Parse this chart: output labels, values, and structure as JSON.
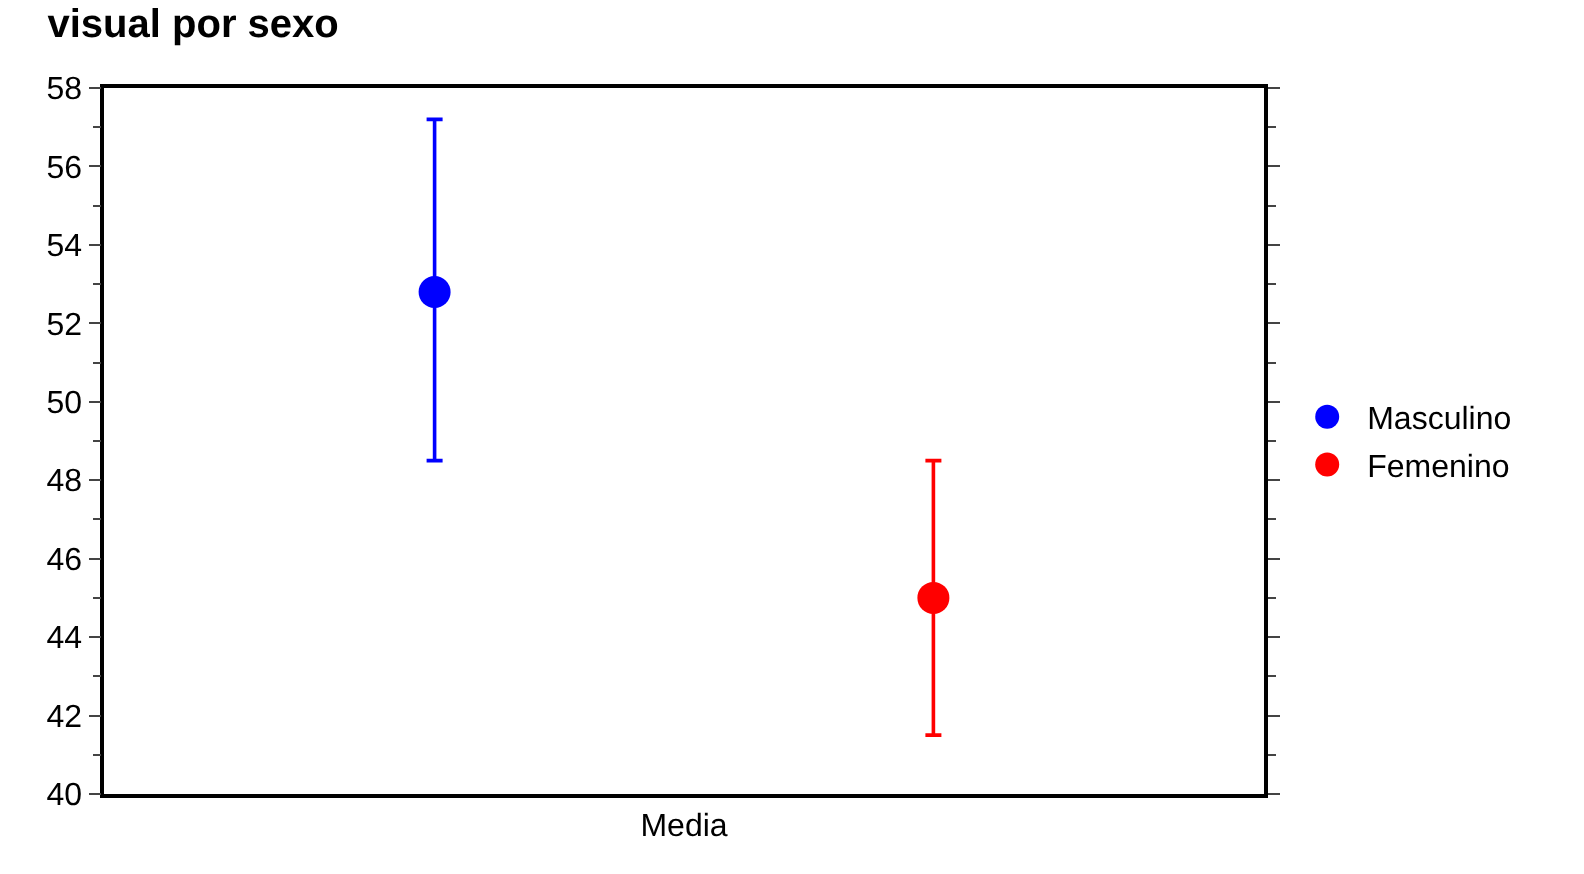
{
  "chart_data": {
    "type": "scatter",
    "title": "visual por sexo",
    "categories": [
      "Media"
    ],
    "series": [
      {
        "name": "Masculino",
        "color": "#0000ff",
        "values": [
          52.8
        ],
        "errors": [
          [
            48.5,
            57.2
          ]
        ]
      },
      {
        "name": "Femenino",
        "color": "#ff0000",
        "values": [
          45.0
        ],
        "errors": [
          [
            41.5,
            48.5
          ]
        ]
      }
    ],
    "ylim": [
      40,
      58
    ],
    "yticks": [
      40,
      42,
      44,
      46,
      48,
      50,
      52,
      54,
      56,
      58
    ],
    "grid": false,
    "legend": "right",
    "marker": "circle"
  }
}
